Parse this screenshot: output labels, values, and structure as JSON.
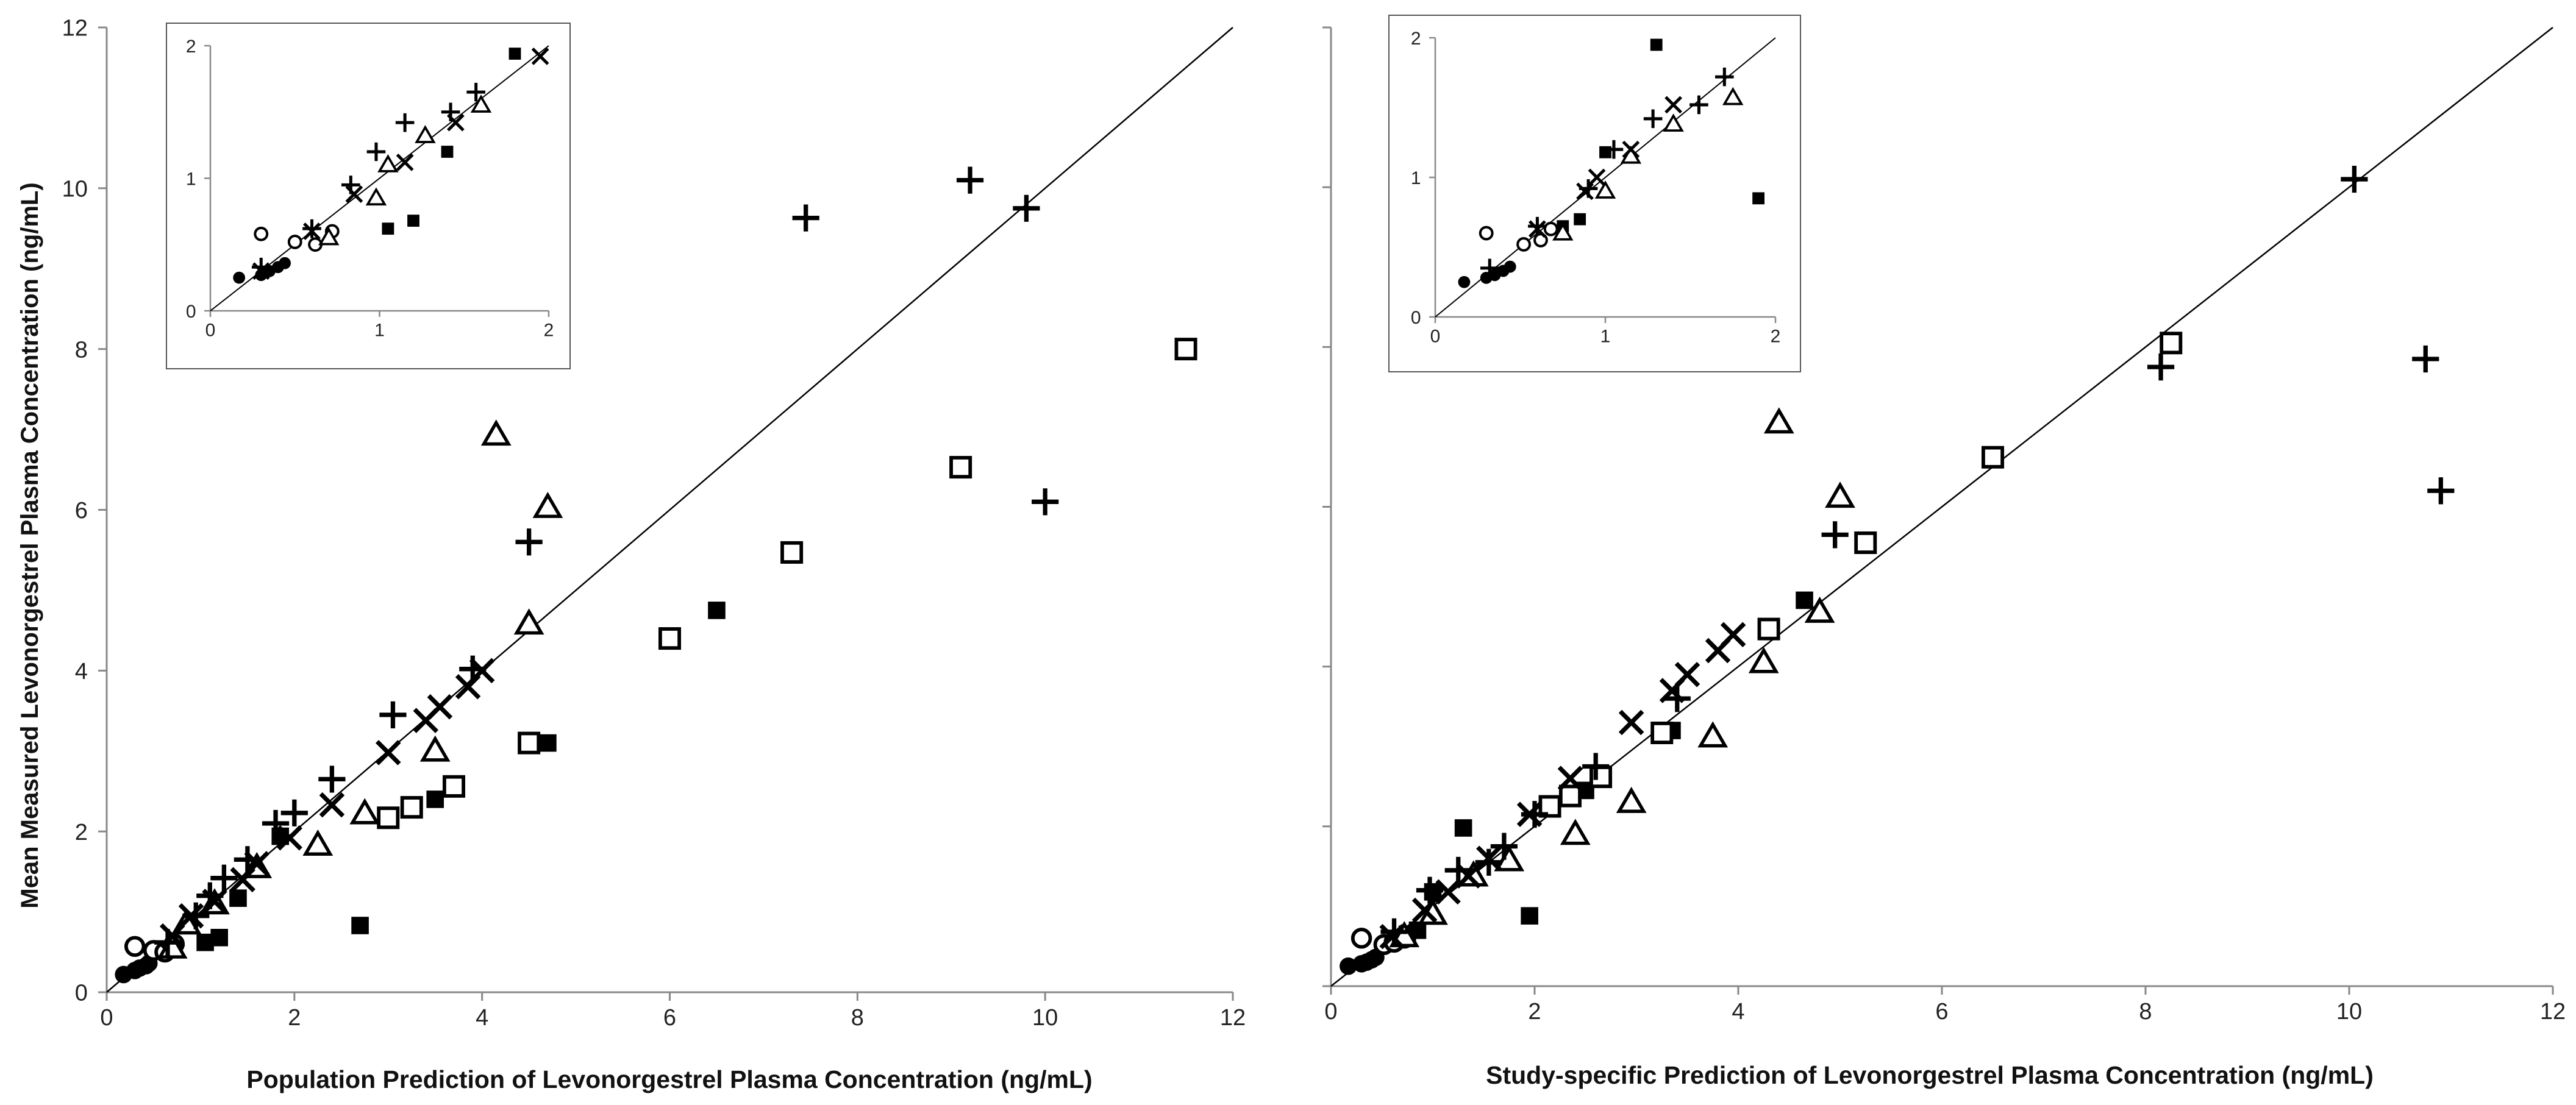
{
  "y_axis_title": "Mean Measured Levonorgestrel Plasma Concentration (ng/mL)",
  "chart_data": [
    {
      "type": "scatter",
      "id": "left",
      "xlabel": "Population Prediction of Levonorgestrel Plasma Concentration (ng/mL)",
      "ylabel": "Mean Measured Levonorgestrel Plasma Concentration (ng/mL)",
      "xlim": [
        0,
        12
      ],
      "ylim": [
        0,
        12
      ],
      "xticks": [
        "0",
        "2",
        "4",
        "6",
        "8",
        "10",
        "12"
      ],
      "yticks": [
        "0",
        "2",
        "4",
        "6",
        "8",
        "10",
        "12"
      ],
      "identity_line": true,
      "series": [
        {
          "name": "filled-circle",
          "marker": "filled-circle",
          "x": [
            0.18,
            0.3,
            0.35,
            0.42,
            0.45
          ],
          "y": [
            0.22,
            0.27,
            0.3,
            0.33,
            0.36
          ]
        },
        {
          "name": "open-circle",
          "marker": "open-circle",
          "x": [
            0.3,
            0.5,
            0.62,
            0.72
          ],
          "y": [
            0.57,
            0.52,
            0.5,
            0.6
          ]
        },
        {
          "name": "filled-square",
          "marker": "filled-square",
          "x": [
            1.05,
            1.2,
            1.4,
            1.85,
            2.7,
            3.5,
            4.7,
            6.5
          ],
          "y": [
            0.62,
            0.68,
            1.17,
            1.94,
            0.83,
            2.4,
            3.1,
            4.75
          ]
        },
        {
          "name": "open-square",
          "marker": "open-square",
          "x": [
            3.0,
            3.25,
            3.7,
            4.5,
            6.0,
            7.3,
            9.1,
            11.5
          ],
          "y": [
            2.17,
            2.3,
            2.56,
            3.1,
            4.4,
            5.47,
            6.53,
            8.0
          ]
        },
        {
          "name": "open-triangle",
          "marker": "open-triangle",
          "x": [
            0.7,
            0.85,
            1.15,
            1.6,
            2.25,
            2.75,
            3.5,
            4.5,
            4.15,
            4.7
          ],
          "y": [
            0.55,
            0.85,
            1.1,
            1.55,
            1.83,
            2.22,
            3.0,
            4.58,
            6.93,
            6.03
          ]
        },
        {
          "name": "cross",
          "marker": "cross",
          "x": [
            0.65,
            0.95,
            1.1,
            1.25,
            1.5,
            1.8,
            2.0,
            2.4,
            3.05,
            3.9,
            4.5,
            7.45,
            9.2,
            9.8,
            10.0
          ],
          "y": [
            0.62,
            0.95,
            1.2,
            1.42,
            1.65,
            2.1,
            2.23,
            2.65,
            3.45,
            4.02,
            5.6,
            9.63,
            10.1,
            9.75,
            6.1
          ]
        },
        {
          "name": "x-mark",
          "marker": "x",
          "x": [
            0.7,
            0.9,
            1.15,
            1.45,
            1.6,
            1.95,
            2.4,
            3.0,
            3.4,
            3.55,
            3.85,
            4.0
          ],
          "y": [
            0.7,
            0.95,
            1.13,
            1.4,
            1.6,
            1.92,
            2.33,
            2.98,
            3.38,
            3.55,
            3.8,
            4.0
          ]
        }
      ],
      "inset": {
        "xlim": [
          0,
          2
        ],
        "ylim": [
          0,
          2
        ],
        "xticks": [
          "0",
          "1",
          "2"
        ],
        "yticks": [
          "0",
          "1",
          "2"
        ],
        "identity_line": true,
        "series": [
          {
            "name": "filled-circle",
            "marker": "filled-circle",
            "x": [
              0.17,
              0.3,
              0.35,
              0.4,
              0.44
            ],
            "y": [
              0.25,
              0.27,
              0.3,
              0.33,
              0.36
            ]
          },
          {
            "name": "open-circle",
            "marker": "open-circle",
            "x": [
              0.3,
              0.5,
              0.62,
              0.72
            ],
            "y": [
              0.58,
              0.52,
              0.5,
              0.6
            ]
          },
          {
            "name": "filled-square",
            "marker": "filled-square",
            "x": [
              1.05,
              1.2,
              1.4,
              1.8
            ],
            "y": [
              0.62,
              0.68,
              1.2,
              1.94
            ]
          },
          {
            "name": "open-triangle",
            "marker": "open-triangle",
            "x": [
              0.7,
              0.98,
              1.05,
              1.27,
              1.6
            ],
            "y": [
              0.55,
              0.85,
              1.1,
              1.32,
              1.55
            ]
          },
          {
            "name": "cross",
            "marker": "cross",
            "x": [
              0.3,
              0.6,
              0.83,
              0.98,
              1.15,
              1.42,
              1.57
            ],
            "y": [
              0.33,
              0.62,
              0.95,
              1.2,
              1.42,
              1.5,
              1.65
            ]
          },
          {
            "name": "x-mark",
            "marker": "x",
            "x": [
              0.3,
              0.6,
              0.85,
              1.15,
              1.45,
              1.95
            ],
            "y": [
              0.3,
              0.6,
              0.88,
              1.12,
              1.42,
              1.92
            ]
          }
        ]
      }
    },
    {
      "type": "scatter",
      "id": "right",
      "xlabel": "Study-specific Prediction of Levonorgestrel Plasma Concentration (ng/mL)",
      "ylabel": "",
      "xlim": [
        0,
        12
      ],
      "ylim": [
        0,
        12
      ],
      "xticks": [
        "0",
        "2",
        "4",
        "6",
        "8",
        "10",
        "12"
      ],
      "yticks": [],
      "identity_line": true,
      "series": [
        {
          "name": "filled-circle",
          "marker": "filled-circle",
          "x": [
            0.17,
            0.3,
            0.35,
            0.4,
            0.44
          ],
          "y": [
            0.25,
            0.28,
            0.3,
            0.33,
            0.36
          ]
        },
        {
          "name": "open-circle",
          "marker": "open-circle",
          "x": [
            0.3,
            0.52,
            0.62,
            0.72
          ],
          "y": [
            0.6,
            0.52,
            0.55,
            0.6
          ]
        },
        {
          "name": "filled-square",
          "marker": "filled-square",
          "x": [
            0.75,
            0.85,
            1.0,
            1.3,
            1.95,
            2.5,
            3.35,
            4.65
          ],
          "y": [
            0.65,
            0.7,
            1.18,
            1.98,
            0.88,
            2.45,
            3.2,
            4.83
          ]
        },
        {
          "name": "open-square",
          "marker": "open-square",
          "x": [
            2.15,
            2.35,
            2.65,
            3.25,
            4.3,
            5.25,
            6.5,
            8.25
          ],
          "y": [
            2.25,
            2.38,
            2.62,
            3.17,
            4.47,
            5.55,
            6.62,
            8.05
          ]
        },
        {
          "name": "open-triangle",
          "marker": "open-triangle",
          "x": [
            0.72,
            1.0,
            1.4,
            1.75,
            2.4,
            2.95,
            3.75,
            4.25,
            4.8,
            5.0,
            4.4
          ],
          "y": [
            0.62,
            0.9,
            1.38,
            1.57,
            1.9,
            2.3,
            3.12,
            4.05,
            4.68,
            6.12,
            7.05
          ]
        },
        {
          "name": "cross",
          "marker": "cross",
          "x": [
            0.62,
            0.97,
            1.25,
            1.55,
            1.7,
            2.0,
            2.6,
            3.4,
            4.95,
            8.15,
            10.05,
            10.75,
            10.9
          ],
          "y": [
            0.68,
            1.2,
            1.45,
            1.55,
            1.75,
            2.15,
            2.75,
            3.6,
            5.65,
            7.75,
            10.1,
            7.85,
            6.2
          ]
        },
        {
          "name": "x-mark",
          "marker": "x",
          "x": [
            0.6,
            0.92,
            1.15,
            1.35,
            1.55,
            1.95,
            2.35,
            2.95,
            3.35,
            3.5,
            3.8,
            3.95
          ],
          "y": [
            0.62,
            0.95,
            1.18,
            1.38,
            1.6,
            2.15,
            2.6,
            3.3,
            3.7,
            3.9,
            4.2,
            4.4
          ]
        }
      ],
      "inset": {
        "xlim": [
          0,
          2
        ],
        "ylim": [
          0,
          2
        ],
        "xticks": [
          "0",
          "1",
          "2"
        ],
        "yticks": [
          "0",
          "1",
          "2"
        ],
        "identity_line": true,
        "series": [
          {
            "name": "filled-circle",
            "marker": "filled-circle",
            "x": [
              0.17,
              0.3,
              0.35,
              0.4,
              0.44
            ],
            "y": [
              0.25,
              0.28,
              0.3,
              0.33,
              0.36
            ]
          },
          {
            "name": "open-circle",
            "marker": "open-circle",
            "x": [
              0.3,
              0.52,
              0.62,
              0.68
            ],
            "y": [
              0.6,
              0.52,
              0.55,
              0.63
            ]
          },
          {
            "name": "filled-square",
            "marker": "filled-square",
            "x": [
              0.75,
              0.85,
              1.0,
              1.3,
              1.9
            ],
            "y": [
              0.65,
              0.7,
              1.18,
              1.95,
              0.85
            ]
          },
          {
            "name": "open-triangle",
            "marker": "open-triangle",
            "x": [
              0.75,
              1.0,
              1.15,
              1.4,
              1.75
            ],
            "y": [
              0.6,
              0.9,
              1.15,
              1.38,
              1.57
            ]
          },
          {
            "name": "cross",
            "marker": "cross",
            "x": [
              0.32,
              0.6,
              0.9,
              1.05,
              1.28,
              1.55,
              1.7
            ],
            "y": [
              0.35,
              0.65,
              0.92,
              1.2,
              1.42,
              1.52,
              1.72
            ]
          },
          {
            "name": "x-mark",
            "marker": "x",
            "x": [
              0.6,
              0.88,
              0.95,
              1.15,
              1.4
            ],
            "y": [
              0.63,
              0.9,
              1.0,
              1.2,
              1.52
            ]
          }
        ]
      }
    }
  ]
}
